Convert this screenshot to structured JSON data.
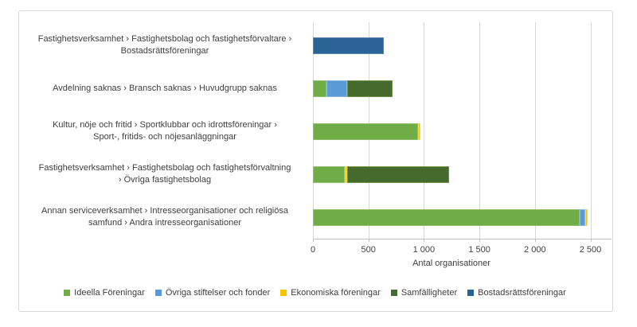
{
  "chart_data": {
    "type": "bar",
    "orientation": "horizontal",
    "stacked": true,
    "title": "",
    "xlabel": "Antal organisationer",
    "ylabel": "",
    "grid": true,
    "legend_position": "bottom",
    "xlim": [
      0,
      2500
    ],
    "x_ticks": [
      {
        "value": 0,
        "label": "0"
      },
      {
        "value": 500,
        "label": "500"
      },
      {
        "value": 1000,
        "label": "1 000"
      },
      {
        "value": 1500,
        "label": "1 500"
      },
      {
        "value": 2000,
        "label": "2 000"
      },
      {
        "value": 2500,
        "label": "2 500"
      }
    ],
    "categories": [
      "Fastighetsverksamhet › Fastighetsbolag och fastighetsförvaltare ›\nBostadsrättsföreningar",
      "Avdelning saknas › Bransch saknas › Huvudgrupp saknas",
      "Kultur, nöje och fritid › Sportklubbar och idrottsföreningar ›\nSport-, fritids- och nöjesanläggningar",
      "Fastighetsverksamhet › Fastighetsbolag och fastighetsförvaltning\n› Övriga fastighetsbolag",
      "Annan serviceverksamhet › Intresseorganisationer och religiösa\nsamfund › Andra intresseorganisationer"
    ],
    "series": [
      {
        "name": "Ideella Föreningar",
        "color": "#70AD47",
        "edge": "#92c06a",
        "values": [
          0,
          125,
          950,
          290,
          2400
        ]
      },
      {
        "name": "Övriga stiftelser och fonder",
        "color": "#5B9BD5",
        "edge": "#8ab9e3",
        "values": [
          0,
          180,
          0,
          0,
          50
        ]
      },
      {
        "name": "Ekonomiska föreningar",
        "color": "#FFC000",
        "edge": "#ffd966",
        "values": [
          0,
          0,
          15,
          15,
          25
        ]
      },
      {
        "name": "Samfälligheter",
        "color": "#46692D",
        "edge": "#71924c",
        "values": [
          0,
          415,
          0,
          925,
          0
        ]
      },
      {
        "name": "Bostadsrättsföreningar",
        "color": "#2A6396",
        "edge": "#5585ad",
        "values": [
          640,
          0,
          0,
          0,
          0
        ]
      }
    ],
    "totals_by_category": [
      640,
      720,
      965,
      1230,
      2475
    ]
  },
  "colors": {
    "frame_border": "#D9D9D9",
    "gridline": "#D9D9D9",
    "axis_line": "#BFBFBF",
    "text": "#404040",
    "background": "#FFFFFF"
  }
}
